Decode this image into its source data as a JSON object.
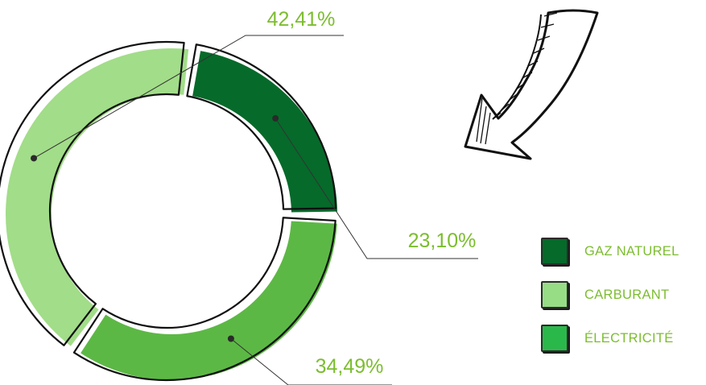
{
  "theme": {
    "label_color": "#7cbd2f",
    "outline_color": "#111111",
    "leader_color": "#333333"
  },
  "legend": {
    "items": [
      {
        "label": "GAZ NATUREL",
        "color": "#066a2a"
      },
      {
        "label": "CARBURANT",
        "color": "#97dd86"
      },
      {
        "label": "ÉLECTRICITÉ",
        "color": "#2bb84b"
      }
    ]
  },
  "chart_data": {
    "type": "pie",
    "variant": "donut",
    "slices": [
      {
        "category": "GAZ NATUREL",
        "value": 23.1,
        "label": "23,10%",
        "color": "#066a2a"
      },
      {
        "category": "ÉLECTRICITÉ",
        "value": 34.49,
        "label": "34,49%",
        "color": "#5cb845"
      },
      {
        "category": "CARBURANT",
        "value": 42.41,
        "label": "42,41%",
        "color": "#a2dd89"
      }
    ],
    "legend_position": "right",
    "decoration": "hand-drawn-arrow-pointing-to-chart"
  }
}
